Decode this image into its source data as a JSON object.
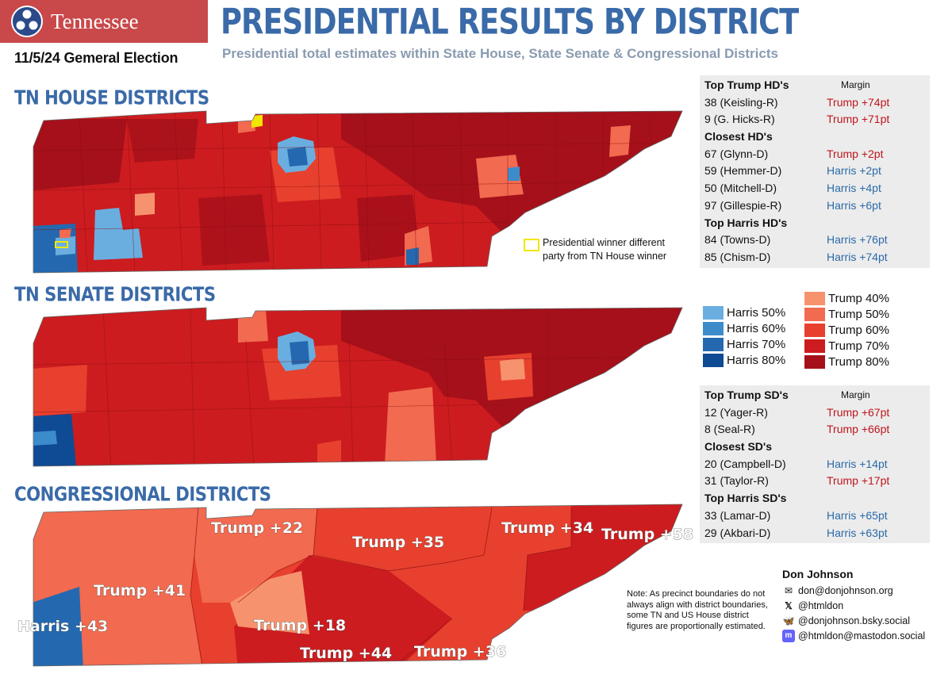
{
  "header": {
    "state_name": "Tennessee",
    "election": "11/5/24 Gemeral Election",
    "title": "PRESIDENTIAL RESULTS BY DISTRICT",
    "subtitle": "Presidential total estimates within State House, State Senate & Congressional Districts"
  },
  "sections": {
    "house": "TN HOUSE DISTRICTS",
    "senate": "TN SENATE DISTRICTS",
    "congress": "CONGRESSIONAL DISTRICTS"
  },
  "house_highlight_legend": "Presidential winner different party from TN House winner",
  "house_highlight_legend_lines": [
    "Presidential winner different",
    "party from TN House winner"
  ],
  "house_table": {
    "header": "Top Trump HD's",
    "margin_label": "Margin",
    "rows": [
      {
        "kind": "item",
        "district": "38 (Keisling-R)",
        "margin": "Trump +74pt",
        "party": "red"
      },
      {
        "kind": "item",
        "district": "9 (G. Hicks-R)",
        "margin": "Trump +71pt",
        "party": "red"
      },
      {
        "kind": "sub",
        "district": "Closest HD's",
        "margin": ""
      },
      {
        "kind": "item",
        "district": "67 (Glynn-D)",
        "margin": "Trump +2pt",
        "party": "red"
      },
      {
        "kind": "item",
        "district": "59 (Hemmer-D)",
        "margin": "Harris +2pt",
        "party": "blue"
      },
      {
        "kind": "item",
        "district": "50 (Mitchell-D)",
        "margin": "Harris +4pt",
        "party": "blue"
      },
      {
        "kind": "item",
        "district": "97 (Gillespie-R)",
        "margin": "Harris +6pt",
        "party": "blue"
      },
      {
        "kind": "sub",
        "district": "Top Harris HD's",
        "margin": ""
      },
      {
        "kind": "item",
        "district": "84 (Towns-D)",
        "margin": "Harris +76pt",
        "party": "blue"
      },
      {
        "kind": "item",
        "district": "85 (Chism-D)",
        "margin": "Harris +74pt",
        "party": "blue"
      }
    ]
  },
  "senate_table": {
    "header": "Top Trump SD's",
    "margin_label": "Margin",
    "rows": [
      {
        "kind": "item",
        "district": "12 (Yager-R)",
        "margin": "Trump +67pt",
        "party": "red"
      },
      {
        "kind": "item",
        "district": "8 (Seal-R)",
        "margin": "Trump +66pt",
        "party": "red"
      },
      {
        "kind": "sub",
        "district": "Closest SD's",
        "margin": ""
      },
      {
        "kind": "item",
        "district": "20 (Campbell-D)",
        "margin": "Harris +14pt",
        "party": "blue"
      },
      {
        "kind": "item",
        "district": "31 (Taylor-R)",
        "margin": "Trump +17pt",
        "party": "red"
      },
      {
        "kind": "sub",
        "district": "Top Harris SD's",
        "margin": ""
      },
      {
        "kind": "item",
        "district": "33 (Lamar-D)",
        "margin": "Harris +65pt",
        "party": "blue"
      },
      {
        "kind": "item",
        "district": "29 (Akbari-D)",
        "margin": "Harris +63pt",
        "party": "blue"
      }
    ]
  },
  "legend": {
    "harris": [
      {
        "label": "Harris 50%",
        "color": "#6aaee0"
      },
      {
        "label": "Harris 60%",
        "color": "#3c8ccc"
      },
      {
        "label": "Harris 70%",
        "color": "#2469b0"
      },
      {
        "label": "Harris 80%",
        "color": "#0f4a94"
      }
    ],
    "trump": [
      {
        "label": "Trump 40%",
        "color": "#f7926e"
      },
      {
        "label": "Trump 50%",
        "color": "#f26a4f"
      },
      {
        "label": "Trump 60%",
        "color": "#e8402e"
      },
      {
        "label": "Trump 70%",
        "color": "#cc1c1f"
      },
      {
        "label": "Trump 80%",
        "color": "#a5101a"
      }
    ]
  },
  "congress_labels": [
    "Harris +43",
    "Trump +41",
    "Trump +22",
    "Trump +35",
    "Trump +18",
    "Trump +44",
    "Trump +36",
    "Trump +34",
    "Trump +58"
  ],
  "note": "Note: As precinct boundaries do not always align with district boundaries, some TN and US House district figures are proportionally estimated.",
  "author": {
    "name": "Don Johnson",
    "email": "don@donjohnson.org",
    "x": "@htmldon",
    "bluesky": "@donjohnson.bsky.social",
    "mastodon": "@htmldon@mastodon.social"
  },
  "colors": {
    "title_blue": "#3a6aa8",
    "badge_red": "#c9484a",
    "highlight_yellow": "#f2e600",
    "trump_text": "#c0141c",
    "harris_text": "#2b6aa8"
  }
}
